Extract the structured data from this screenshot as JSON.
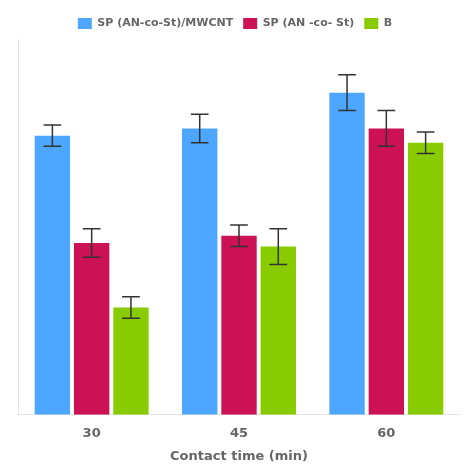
{
  "chart_data": {
    "type": "bar",
    "categories": [
      30,
      45,
      60
    ],
    "series": [
      {
        "name": "SP (AN-co-St)/MWCNT",
        "color": "#4da6ff",
        "values": [
          78,
          80,
          90
        ],
        "errors": [
          3,
          4,
          5
        ]
      },
      {
        "name": "SP (AN -co- St)",
        "color": "#cc1155",
        "values": [
          48,
          50,
          80
        ],
        "errors": [
          4,
          3,
          5
        ]
      },
      {
        "name": "B",
        "color": "#88cc00",
        "values": [
          30,
          47,
          76
        ],
        "errors": [
          3,
          5,
          3
        ]
      }
    ],
    "xlabel": "Contact time (min)",
    "ylim": [
      0,
      105
    ],
    "yticks": [],
    "grid": false,
    "legend": "top",
    "tick_labels": "x"
  }
}
